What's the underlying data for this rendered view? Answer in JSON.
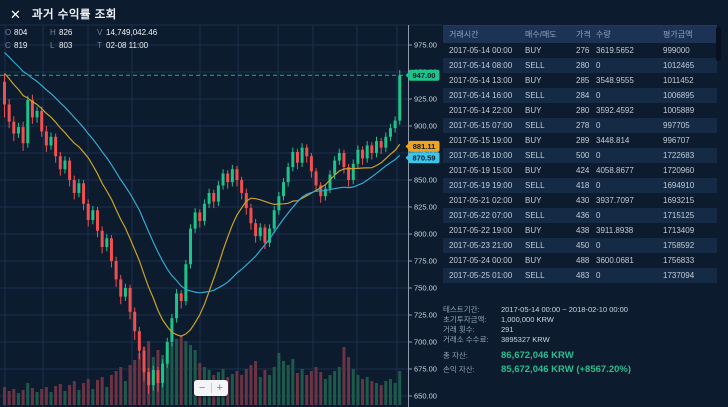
{
  "header": {
    "title": "과거 수익률 조회",
    "close_glyph": "✕"
  },
  "chart_controls": {
    "zoom_out": "−",
    "zoom_in": "+"
  },
  "ohlc_legend": {
    "rows": [
      [
        {
          "k": "O",
          "v": "804"
        },
        {
          "k": "H",
          "v": "826"
        },
        {
          "k": "V",
          "v": "14,749,042.46"
        }
      ],
      [
        {
          "k": "C",
          "v": "819"
        },
        {
          "k": "L",
          "v": "803"
        },
        {
          "k": "T",
          "v": "02-08 11:00"
        }
      ]
    ]
  },
  "chart_data": {
    "type": "candlestick",
    "y_ticks": [
      "975.00",
      "950.00",
      "925.00",
      "900.00",
      "875.00",
      "850.00",
      "825.00",
      "800.00",
      "775.00",
      "750.00",
      "725.00",
      "700.00",
      "675.00",
      "650.00"
    ],
    "axis": {
      "max": 975,
      "min": 650,
      "step": 25
    },
    "last_price_line": 947.0,
    "price_labels": [
      {
        "text": "947.00",
        "price": 947.0,
        "color": "#1fc389",
        "role": "last-price"
      },
      {
        "text": "881.11",
        "price": 881.11,
        "color": "#eda41f",
        "role": "ma-fast"
      },
      {
        "text": "870.59",
        "price": 870.59,
        "color": "#3ec6ea",
        "role": "ma-slow"
      }
    ],
    "moving_average_windows": {
      "fast": 14,
      "slow": 25
    },
    "colors": {
      "up": "#1fc389",
      "down": "#f0504f",
      "vol_up": "#1d5a4b",
      "vol_down": "#6b3343",
      "ma_fast": "#c9a227",
      "ma_slow": "#35a8cd",
      "grid": "#1b2f4e",
      "axis": "#8e9aa9",
      "tick_text": "#cdd6e1",
      "dashed": "#1fc389",
      "badge_text": "#0c1a2c"
    },
    "candles": [
      [
        941,
        948,
        908,
        920,
        18
      ],
      [
        920,
        925,
        898,
        904,
        14
      ],
      [
        904,
        909,
        886,
        893,
        16
      ],
      [
        893,
        903,
        889,
        899,
        12
      ],
      [
        899,
        904,
        877,
        884,
        15
      ],
      [
        884,
        928,
        880,
        924,
        22
      ],
      [
        924,
        929,
        902,
        908,
        17
      ],
      [
        908,
        918,
        903,
        914,
        13
      ],
      [
        914,
        918,
        890,
        895,
        16
      ],
      [
        895,
        900,
        876,
        882,
        18
      ],
      [
        882,
        894,
        878,
        890,
        13
      ],
      [
        890,
        893,
        866,
        872,
        19
      ],
      [
        872,
        876,
        854,
        860,
        21
      ],
      [
        860,
        872,
        856,
        868,
        14
      ],
      [
        868,
        871,
        844,
        850,
        20
      ],
      [
        850,
        854,
        832,
        838,
        24
      ],
      [
        838,
        851,
        834,
        847,
        15
      ],
      [
        847,
        850,
        822,
        828,
        22
      ],
      [
        828,
        832,
        807,
        813,
        26
      ],
      [
        813,
        826,
        809,
        822,
        16
      ],
      [
        822,
        825,
        797,
        803,
        25
      ],
      [
        803,
        807,
        782,
        788,
        28
      ],
      [
        788,
        800,
        784,
        796,
        18
      ],
      [
        796,
        799,
        769,
        775,
        30
      ],
      [
        775,
        779,
        751,
        758,
        34
      ],
      [
        758,
        762,
        735,
        742,
        38
      ],
      [
        742,
        754,
        738,
        750,
        24
      ],
      [
        750,
        753,
        721,
        728,
        40
      ],
      [
        728,
        732,
        702,
        710,
        45
      ],
      [
        710,
        714,
        684,
        692,
        52
      ],
      [
        692,
        696,
        664,
        672,
        58
      ],
      [
        672,
        676,
        652,
        660,
        64
      ],
      [
        660,
        678,
        655,
        674,
        48
      ],
      [
        674,
        677,
        654,
        662,
        55
      ],
      [
        662,
        684,
        658,
        680,
        50
      ],
      [
        680,
        704,
        676,
        700,
        57
      ],
      [
        700,
        726,
        696,
        722,
        62
      ],
      [
        722,
        749,
        718,
        745,
        66
      ],
      [
        745,
        748,
        731,
        738,
        70
      ],
      [
        738,
        776,
        734,
        772,
        64
      ],
      [
        772,
        809,
        768,
        805,
        60
      ],
      [
        805,
        824,
        801,
        820,
        55
      ],
      [
        820,
        823,
        806,
        812,
        42
      ],
      [
        812,
        832,
        808,
        828,
        38
      ],
      [
        828,
        842,
        824,
        838,
        35
      ],
      [
        838,
        841,
        824,
        830,
        30
      ],
      [
        830,
        849,
        826,
        845,
        33
      ],
      [
        845,
        860,
        841,
        856,
        36
      ],
      [
        856,
        859,
        842,
        848,
        28
      ],
      [
        848,
        864,
        844,
        860,
        31
      ],
      [
        860,
        863,
        844,
        850,
        34
      ],
      [
        850,
        853,
        832,
        838,
        30
      ],
      [
        838,
        842,
        818,
        824,
        36
      ],
      [
        824,
        828,
        804,
        810,
        40
      ],
      [
        810,
        814,
        792,
        798,
        44
      ],
      [
        798,
        810,
        794,
        806,
        28
      ],
      [
        806,
        809,
        786,
        792,
        35
      ],
      [
        792,
        809,
        788,
        805,
        30
      ],
      [
        805,
        826,
        801,
        822,
        38
      ],
      [
        822,
        839,
        818,
        835,
        52
      ],
      [
        835,
        852,
        831,
        848,
        44
      ],
      [
        848,
        866,
        844,
        862,
        40
      ],
      [
        862,
        880,
        858,
        876,
        46
      ],
      [
        876,
        879,
        860,
        866,
        32
      ],
      [
        866,
        884,
        862,
        880,
        36
      ],
      [
        880,
        883,
        866,
        872,
        30
      ],
      [
        872,
        875,
        852,
        858,
        34
      ],
      [
        858,
        861,
        839,
        845,
        38
      ],
      [
        845,
        848,
        829,
        835,
        33
      ],
      [
        835,
        846,
        831,
        842,
        26
      ],
      [
        842,
        859,
        838,
        855,
        30
      ],
      [
        855,
        872,
        851,
        868,
        34
      ],
      [
        868,
        879,
        864,
        875,
        38
      ],
      [
        875,
        878,
        856,
        862,
        58
      ],
      [
        862,
        865,
        844,
        850,
        48
      ],
      [
        850,
        869,
        846,
        865,
        36
      ],
      [
        865,
        882,
        861,
        878,
        30
      ],
      [
        878,
        881,
        864,
        870,
        26
      ],
      [
        870,
        886,
        866,
        882,
        28
      ],
      [
        882,
        885,
        869,
        875,
        24
      ],
      [
        875,
        890,
        871,
        886,
        22
      ],
      [
        886,
        889,
        874,
        880,
        20
      ],
      [
        880,
        894,
        876,
        890,
        24
      ],
      [
        890,
        902,
        886,
        898,
        26
      ],
      [
        898,
        909,
        894,
        905,
        22
      ],
      [
        905,
        952,
        901,
        947,
        34
      ]
    ]
  },
  "table": {
    "headers": [
      "거래시간",
      "매수/매도",
      "가격",
      "수량",
      "평가금액"
    ],
    "rows": [
      [
        "2017-05-14 00:00",
        "BUY",
        "276",
        "3619.5652",
        "999000"
      ],
      [
        "2017-05-14 08:00",
        "SELL",
        "280",
        "0",
        "1012465"
      ],
      [
        "2017-05-14 13:00",
        "BUY",
        "285",
        "3548.9555",
        "1011452"
      ],
      [
        "2017-05-14 16:00",
        "SELL",
        "284",
        "0",
        "1006895"
      ],
      [
        "2017-05-14 22:00",
        "BUY",
        "280",
        "3592.4592",
        "1005889"
      ],
      [
        "2017-05-15 07:00",
        "SELL",
        "278",
        "0",
        "997705"
      ],
      [
        "2017-05-15 19:00",
        "BUY",
        "289",
        "3448.814",
        "996707"
      ],
      [
        "2017-05-18 10:00",
        "SELL",
        "500",
        "0",
        "1722683"
      ],
      [
        "2017-05-19 15:00",
        "BUY",
        "424",
        "4058.8677",
        "1720960"
      ],
      [
        "2017-05-19 19:00",
        "SELL",
        "418",
        "0",
        "1694910"
      ],
      [
        "2017-05-21 02:00",
        "BUY",
        "430",
        "3937.7097",
        "1693215"
      ],
      [
        "2017-05-22 07:00",
        "SELL",
        "436",
        "0",
        "1715125"
      ],
      [
        "2017-05-22 19:00",
        "BUY",
        "438",
        "3911.8938",
        "1713409"
      ],
      [
        "2017-05-23 21:00",
        "SELL",
        "450",
        "0",
        "1758592"
      ],
      [
        "2017-05-24 00:00",
        "BUY",
        "488",
        "3600.0681",
        "1756833"
      ],
      [
        "2017-05-25 01:00",
        "SELL",
        "483",
        "0",
        "1737094"
      ]
    ]
  },
  "summary": {
    "rows": [
      {
        "label": "테스트기간:",
        "value": "2017-05-14 00:00 ~ 2018-02-10 00:00",
        "highlight": false,
        "big": false
      },
      {
        "label": "초기투자금액:",
        "value": "1,000,000 KRW",
        "highlight": false,
        "big": false
      },
      {
        "label": "거래 횟수:",
        "value": "291",
        "highlight": false,
        "big": false
      },
      {
        "label": "거래소 수수료:",
        "value": "3895327 KRW",
        "highlight": false,
        "big": false
      },
      {
        "label": "총 자산:",
        "value": "86,672,046 KRW",
        "highlight": true,
        "big": true
      },
      {
        "label": "손익 자산:",
        "value": "85,672,046 KRW (+8567.20%)",
        "highlight": true,
        "big": true
      }
    ]
  }
}
